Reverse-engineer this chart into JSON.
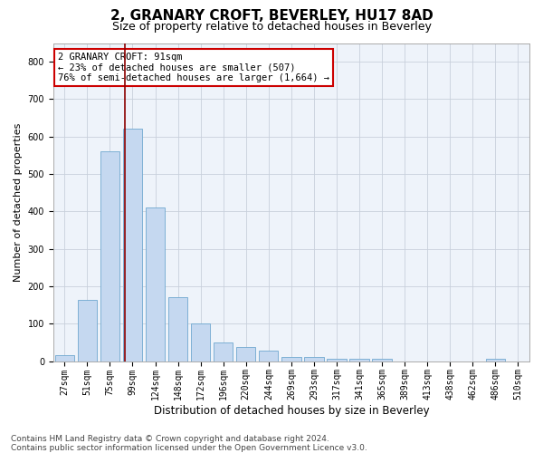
{
  "title": "2, GRANARY CROFT, BEVERLEY, HU17 8AD",
  "subtitle": "Size of property relative to detached houses in Beverley",
  "xlabel": "Distribution of detached houses by size in Beverley",
  "ylabel": "Number of detached properties",
  "categories": [
    "27sqm",
    "51sqm",
    "75sqm",
    "99sqm",
    "124sqm",
    "148sqm",
    "172sqm",
    "196sqm",
    "220sqm",
    "244sqm",
    "269sqm",
    "293sqm",
    "317sqm",
    "341sqm",
    "365sqm",
    "389sqm",
    "413sqm",
    "438sqm",
    "462sqm",
    "486sqm",
    "510sqm"
  ],
  "values": [
    15,
    163,
    560,
    620,
    410,
    170,
    100,
    50,
    38,
    28,
    12,
    10,
    7,
    5,
    5,
    0,
    0,
    0,
    0,
    5,
    0
  ],
  "bar_color": "#c5d8f0",
  "bar_edge_color": "#6fa8d0",
  "vline_color": "#8b0000",
  "annotation_text": "2 GRANARY CROFT: 91sqm\n← 23% of detached houses are smaller (507)\n76% of semi-detached houses are larger (1,664) →",
  "annotation_box_color": "white",
  "annotation_box_edge_color": "#cc0000",
  "ylim": [
    0,
    850
  ],
  "yticks": [
    0,
    100,
    200,
    300,
    400,
    500,
    600,
    700,
    800
  ],
  "grid_color": "#c8d0dc",
  "background_color": "#eef3fa",
  "footer_text": "Contains HM Land Registry data © Crown copyright and database right 2024.\nContains public sector information licensed under the Open Government Licence v3.0.",
  "title_fontsize": 11,
  "subtitle_fontsize": 9,
  "xlabel_fontsize": 8.5,
  "ylabel_fontsize": 8,
  "tick_fontsize": 7,
  "annotation_fontsize": 7.5,
  "footer_fontsize": 6.5
}
